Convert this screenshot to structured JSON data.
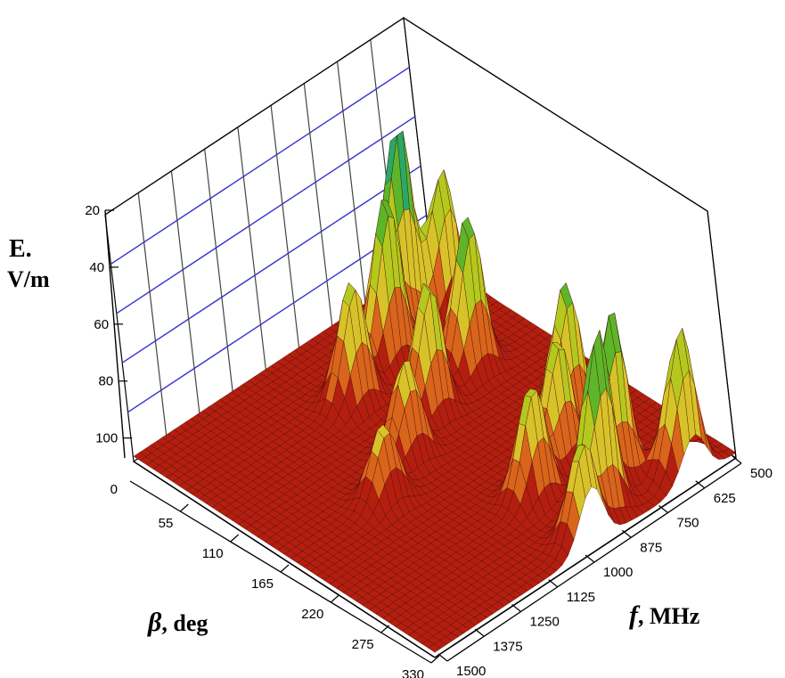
{
  "chart_data": {
    "type": "surface3d",
    "zlabel_line1": "E.",
    "zlabel_line2": "V/m",
    "xlabel_symbol": "β",
    "xlabel_unit": ", deg",
    "ylabel_symbol": "f",
    "ylabel_unit": ",  MHz",
    "z_ticks": [
      "20",
      "40",
      "60",
      "80",
      "100",
      "0"
    ],
    "beta_ticks": [
      "55",
      "110",
      "165",
      "220",
      "275",
      "330"
    ],
    "freq_ticks": [
      "500",
      "625",
      "750",
      "875",
      "1000",
      "1125",
      "1250",
      "1375",
      "1500"
    ],
    "beta_range": [
      0,
      330
    ],
    "freq_range": [
      500,
      1500
    ],
    "grid": "on",
    "colormap": [
      "#b41e0f",
      "#d9641c",
      "#d8c22a",
      "#b5c81f",
      "#5fb52a",
      "#2aa868",
      "#3fb4aa"
    ],
    "peaks": [
      {
        "beta": 50,
        "f": 620,
        "E": 55
      },
      {
        "beta": 40,
        "f": 740,
        "E": 82
      },
      {
        "beta": 60,
        "f": 840,
        "E": 65
      },
      {
        "beta": 75,
        "f": 1000,
        "E": 48
      },
      {
        "beta": 110,
        "f": 720,
        "E": 60
      },
      {
        "beta": 125,
        "f": 900,
        "E": 52
      },
      {
        "beta": 150,
        "f": 1050,
        "E": 38
      },
      {
        "beta": 175,
        "f": 1200,
        "E": 30
      },
      {
        "beta": 210,
        "f": 700,
        "E": 55
      },
      {
        "beta": 240,
        "f": 820,
        "E": 50
      },
      {
        "beta": 255,
        "f": 950,
        "E": 45
      },
      {
        "beta": 280,
        "f": 760,
        "E": 64
      },
      {
        "beta": 300,
        "f": 870,
        "E": 70
      },
      {
        "beta": 315,
        "f": 640,
        "E": 56
      },
      {
        "beta": 320,
        "f": 980,
        "E": 40
      }
    ]
  }
}
